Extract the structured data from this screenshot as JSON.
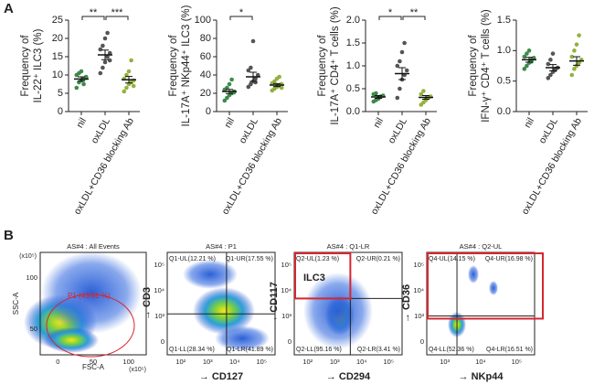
{
  "panel_labels": [
    "A",
    "B"
  ],
  "chart_data": [
    {
      "type": "dot",
      "ylabel": [
        "Frequency of",
        "IL-22⁺ ILC3 (%)"
      ],
      "categories": [
        "nil",
        "oxLDL",
        "oxLDL+CD36 blocking Ab"
      ],
      "colors": [
        "#3d8b4a",
        "#555555",
        "#93b23d"
      ],
      "points": [
        [
          6.5,
          8,
          8.5,
          9,
          9.2,
          10,
          10.5,
          11,
          7.5,
          9.5
        ],
        [
          10.5,
          12,
          13.5,
          15,
          16,
          17,
          18,
          20,
          21.5,
          14
        ],
        [
          5.5,
          6.5,
          7.5,
          8,
          8.5,
          9,
          10,
          11,
          14,
          7
        ]
      ],
      "means": [
        8.9,
        15.5,
        8.7
      ],
      "sem": [
        0.6,
        1.3,
        0.9
      ],
      "ylim": [
        0,
        25
      ],
      "yticks": [
        0,
        5,
        10,
        15,
        20,
        25
      ],
      "significance": [
        {
          "from": 0,
          "to": 1,
          "label": "**"
        },
        {
          "from": 1,
          "to": 2,
          "label": "***"
        }
      ]
    },
    {
      "type": "dot",
      "ylabel": [
        "Frequency of",
        "IL-17A⁺ NKp44⁺ ILC3 (%)"
      ],
      "categories": [
        "nil",
        "oxLDL",
        "oxLDL+CD36 blocking Ab"
      ],
      "colors": [
        "#3d8b4a",
        "#555555",
        "#93b23d"
      ],
      "points": [
        [
          12,
          15,
          18,
          20,
          22,
          24,
          26,
          30,
          35,
          21
        ],
        [
          27,
          30,
          33,
          36,
          40,
          45,
          48,
          77,
          32
        ],
        [
          23,
          25,
          27,
          28,
          30,
          31,
          33,
          36,
          38,
          26
        ]
      ],
      "means": [
        22,
        38,
        29
      ],
      "sem": [
        2.3,
        5,
        1.6
      ],
      "ylim": [
        0,
        100
      ],
      "yticks": [
        0,
        20,
        40,
        60,
        80,
        100
      ],
      "significance": [
        {
          "from": 0,
          "to": 1,
          "label": "*"
        }
      ]
    },
    {
      "type": "dot",
      "ylabel": [
        "Frequency of",
        "IL-17A⁺ CD4⁺ T cells (%)"
      ],
      "categories": [
        "nil",
        "oxLDL",
        "oxLDL+CD36 blocking Ab"
      ],
      "colors": [
        "#3d8b4a",
        "#555555",
        "#93b23d"
      ],
      "points": [
        [
          0.22,
          0.25,
          0.3,
          0.32,
          0.35,
          0.38,
          0.4,
          0.28,
          0.33
        ],
        [
          0.3,
          0.5,
          0.7,
          0.8,
          0.9,
          1.0,
          1.1,
          1.3,
          1.5
        ],
        [
          0.15,
          0.2,
          0.25,
          0.3,
          0.33,
          0.38,
          0.45,
          0.28,
          0.3
        ]
      ],
      "means": [
        0.32,
        0.83,
        0.31
      ],
      "sem": [
        0.03,
        0.13,
        0.04
      ],
      "ylim": [
        0,
        2.0
      ],
      "yticks": [
        {
          "value": 0,
          "label": "0.0"
        },
        0.5,
        {
          "value": 1,
          "label": "1.0"
        },
        1.5,
        {
          "value": 2,
          "label": "2.0"
        }
      ],
      "significance": [
        {
          "from": 0,
          "to": 1,
          "label": "*"
        },
        {
          "from": 1,
          "to": 2,
          "label": "**"
        }
      ]
    },
    {
      "type": "dot",
      "ylabel": [
        "Frequency of",
        "IFN-γ⁺ CD4⁺ T cells (%)"
      ],
      "categories": [
        "nil",
        "oxLDL",
        "oxLDL+CD36 blocking Ab"
      ],
      "colors": [
        "#3d8b4a",
        "#555555",
        "#93b23d"
      ],
      "points": [
        [
          0.7,
          0.75,
          0.8,
          0.85,
          0.88,
          0.9,
          0.95,
          1.0,
          0.82
        ],
        [
          0.55,
          0.6,
          0.65,
          0.7,
          0.72,
          0.78,
          0.85,
          0.95,
          0.68
        ],
        [
          0.6,
          0.7,
          0.75,
          0.8,
          0.85,
          0.9,
          1.0,
          1.1,
          1.25
        ]
      ],
      "means": [
        0.85,
        0.72,
        0.83
      ],
      "sem": [
        0.04,
        0.05,
        0.07
      ],
      "ylim": [
        0,
        1.5
      ],
      "yticks": [
        {
          "value": 0,
          "label": "0.0"
        },
        0.5,
        {
          "value": 1,
          "label": "1.0"
        },
        1.5
      ],
      "significance": []
    }
  ],
  "flow_panels": [
    {
      "title": "AS#4 : All Events",
      "x_label": "FSC-A",
      "y_label": "SSC-A",
      "x_scale": "(x10⁵)",
      "y_scale": "(x10⁵)",
      "x_ticks": [
        "0",
        "50",
        "100"
      ],
      "y_ticks": [
        "50",
        "100"
      ],
      "gate": "P1 (43.61 %)"
    },
    {
      "title": "AS#4 : P1",
      "x_label": "→ CD127",
      "y_label": "→ CD3",
      "x_ticks": [
        "10²",
        "10³",
        "10⁴",
        "10⁵"
      ],
      "y_ticks": [
        "0",
        "10³",
        "10⁴",
        "10⁵"
      ],
      "quadrants": [
        "Q1-UL(12.21 %)",
        "Q1-UR(17.55 %)",
        "Q1-LL(28.34 %)",
        "Q1-LR(41.89 %)"
      ]
    },
    {
      "title": "AS#4 : Q1-LR",
      "x_label": "→ CD294",
      "y_label": "→ CD117",
      "x_ticks": [
        "10²",
        "10³",
        "10⁴",
        "10⁵"
      ],
      "y_ticks": [
        "0",
        "10³",
        "10⁴",
        "10⁵"
      ],
      "quadrants": [
        "Q2-UL(1.23 %)",
        "Q2-UR(0.21 %)",
        "Q2-LL(95.16 %)",
        "Q2-LR(3.41 %)"
      ],
      "gate": "ILC3"
    },
    {
      "title": "AS#4 : Q2-UL",
      "x_label": "→ NKp44",
      "y_label": "→ CD36",
      "x_ticks": [
        "10³",
        "10⁴",
        "10⁵"
      ],
      "y_ticks": [
        "0",
        "10³",
        "10⁴",
        "10⁵"
      ],
      "quadrants": [
        "Q4-UL(14.15 %)",
        "Q4-UR(16.98 %)",
        "Q4-LL(52.36 %)",
        "Q4-LR(16.51 %)"
      ]
    }
  ]
}
